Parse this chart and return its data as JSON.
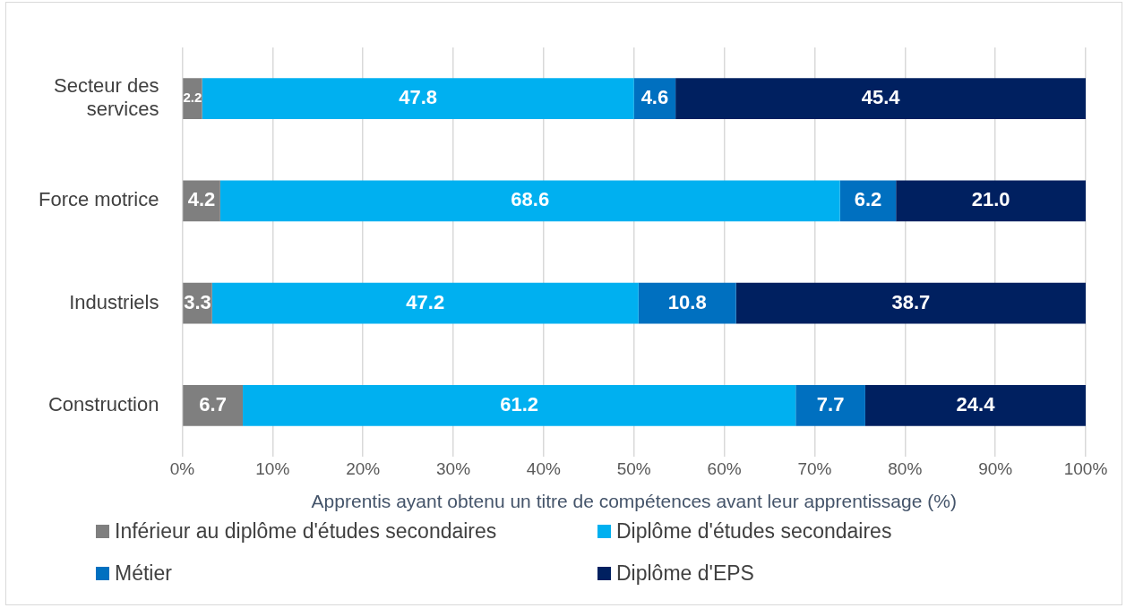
{
  "chart_data": {
    "type": "bar",
    "orientation": "horizontal",
    "stacked": true,
    "categories": [
      "Secteur des services",
      "Force motrice",
      "Industriels",
      "Construction"
    ],
    "series": [
      {
        "name": "Inférieur au diplôme d'études secondaires",
        "color": "#7f7f7f",
        "values": [
          2.2,
          4.2,
          3.3,
          6.7
        ],
        "value_labels": [
          "2.2",
          "4.2",
          "3.3",
          "6.7"
        ]
      },
      {
        "name": "Diplôme d'études secondaires",
        "color": "#00b0f0",
        "values": [
          47.8,
          68.6,
          47.2,
          61.2
        ],
        "value_labels": [
          "47.8",
          "68.6",
          "47.2",
          "61.2"
        ]
      },
      {
        "name": "Métier",
        "color": "#0070c0",
        "values": [
          4.6,
          6.2,
          10.8,
          7.7
        ],
        "value_labels": [
          "4.6",
          "6.2",
          "10.8",
          "7.7"
        ]
      },
      {
        "name": "Diplôme d'EPS",
        "color": "#002060",
        "values": [
          45.4,
          21.0,
          38.7,
          24.4
        ],
        "value_labels": [
          "45.4",
          "21.0",
          "38.7",
          "24.4"
        ]
      }
    ],
    "xlabel": "Apprentis ayant obtenu un titre de compétences avant leur apprentissage (%)",
    "xlim": [
      0,
      100
    ],
    "xticks": [
      {
        "value": 0,
        "label": "0%"
      },
      {
        "value": 10,
        "label": "10%"
      },
      {
        "value": 20,
        "label": "20%"
      },
      {
        "value": 30,
        "label": "30%"
      },
      {
        "value": 40,
        "label": "40%"
      },
      {
        "value": 50,
        "label": "50%"
      },
      {
        "value": 60,
        "label": "60%"
      },
      {
        "value": 70,
        "label": "70%"
      },
      {
        "value": 80,
        "label": "80%"
      },
      {
        "value": 90,
        "label": "90%"
      },
      {
        "value": 100,
        "label": "100%"
      }
    ],
    "grid": "x",
    "legend": "bottom"
  }
}
